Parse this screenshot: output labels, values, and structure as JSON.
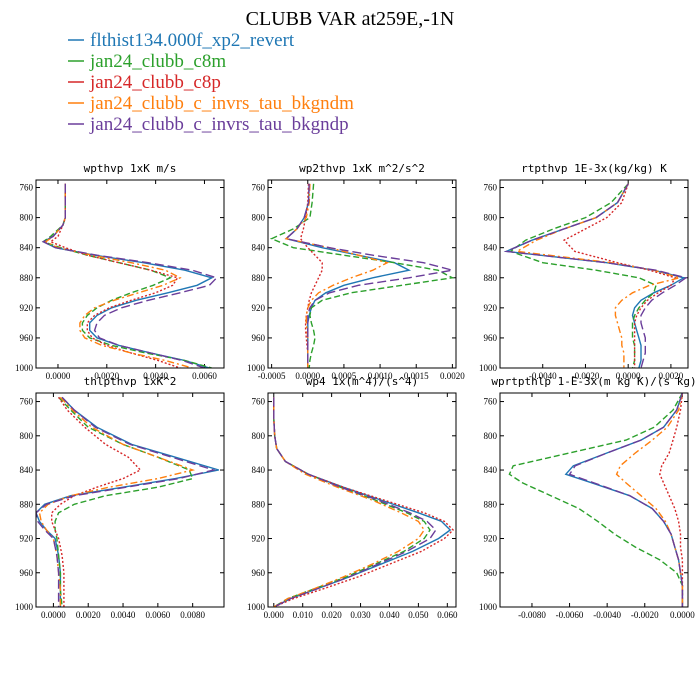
{
  "title": "CLUBB VAR at259E,-1N",
  "legend": [
    {
      "name": "flthist134.000f_xp2_revert",
      "color": "#1f77b4",
      "dash": ""
    },
    {
      "name": "jan24_clubb_c8m",
      "color": "#2ca02c",
      "dash": "6,3"
    },
    {
      "name": "jan24_clubb_c8p",
      "color": "#d62728",
      "dash": "2,2"
    },
    {
      "name": "jan24_clubb_c_invrs_tau_bkgndm",
      "color": "#ff7f0e",
      "dash": "7,3,2,3"
    },
    {
      "name": "jan24_clubb_c_invrs_tau_bkgndp",
      "color": "#6a3d9a",
      "dash": "9,4"
    }
  ],
  "chart_data": [
    {
      "type": "line",
      "title": "wpthvp  1xK m/s",
      "xticks": [
        "0.0000",
        "0.0020",
        "0.0040",
        "0.0060"
      ],
      "xtick_values": [
        0,
        0.002,
        0.004,
        0.006
      ],
      "xlim": [
        -0.0009,
        0.0068
      ],
      "yticks": [
        760,
        800,
        840,
        880,
        920,
        960,
        1000
      ],
      "ylim": [
        1000,
        750
      ],
      "y": [
        755,
        780,
        800,
        810,
        825,
        832,
        840,
        850,
        860,
        870,
        880,
        890,
        900,
        910,
        920,
        930,
        940,
        950,
        960,
        970,
        980,
        990,
        1000
      ],
      "series": [
        {
          "values": [
            0.0003,
            0.0003,
            0.0003,
            0.0002,
            -0.0002,
            -0.0006,
            -0.0001,
            0.0015,
            0.0035,
            0.0052,
            0.0063,
            0.0057,
            0.0045,
            0.0032,
            0.0022,
            0.0016,
            0.0013,
            0.0013,
            0.0016,
            0.0025,
            0.0038,
            0.0052,
            0.0062
          ]
        },
        {
          "values": [
            0.0003,
            0.0003,
            0.0003,
            0.0002,
            -0.0003,
            -0.0006,
            0.0001,
            0.0012,
            0.0025,
            0.0038,
            0.0046,
            0.0039,
            0.003,
            0.0022,
            0.0016,
            0.0012,
            0.001,
            0.001,
            0.0013,
            0.0022,
            0.0036,
            0.0052,
            0.0063
          ]
        },
        {
          "values": [
            0.0003,
            0.0003,
            0.0003,
            0.0002,
            0.0,
            -0.0003,
            0.0003,
            0.0012,
            0.0025,
            0.0038,
            0.0049,
            0.0047,
            0.004,
            0.003,
            0.0021,
            0.0015,
            0.0012,
            0.0012,
            0.0014,
            0.002,
            0.003,
            0.0041,
            0.005
          ]
        },
        {
          "values": [
            0.0003,
            0.0003,
            0.0003,
            0.0002,
            -0.0002,
            -0.0005,
            0.0,
            0.0014,
            0.003,
            0.0044,
            0.005,
            0.0043,
            0.0033,
            0.0023,
            0.0015,
            0.0011,
            0.0009,
            0.0009,
            0.0011,
            0.0018,
            0.003,
            0.0044,
            0.0055
          ]
        },
        {
          "values": [
            0.0003,
            0.0003,
            0.0003,
            0.0002,
            -0.0002,
            -0.0006,
            -0.0001,
            0.0016,
            0.0037,
            0.0055,
            0.0065,
            0.0062,
            0.005,
            0.0037,
            0.0026,
            0.0019,
            0.0016,
            0.0015,
            0.0017,
            0.0025,
            0.0038,
            0.0051,
            0.006
          ]
        }
      ]
    },
    {
      "type": "line",
      "title": "wp2thvp  1xK m^2/s^2",
      "xticks": [
        "-0.0005",
        "0.0000",
        "0.0005",
        "0.0010",
        "0.0015",
        "0.0020"
      ],
      "xtick_values": [
        -0.0005,
        0,
        0.0005,
        0.001,
        0.0015,
        0.002
      ],
      "xlim": [
        -0.00055,
        0.00205
      ],
      "yticks": [
        760,
        800,
        840,
        880,
        920,
        960,
        1000
      ],
      "ylim": [
        1000,
        750
      ],
      "y": [
        755,
        780,
        800,
        815,
        828,
        840,
        850,
        860,
        870,
        880,
        890,
        900,
        910,
        920,
        930,
        940,
        950,
        960,
        970,
        980,
        990,
        1000
      ],
      "series": [
        {
          "values": [
            2e-05,
            1e-05,
            -5e-05,
            -0.00015,
            -0.0003,
            0.0002,
            0.0007,
            0.0012,
            0.0014,
            0.0009,
            0.0005,
            0.00025,
            0.0001,
            5e-05,
            2e-05,
            0.0,
            0.0,
            0.0,
            0.0,
            0.0,
            0.0,
            0.0
          ]
        },
        {
          "values": [
            8e-05,
            6e-05,
            3e-05,
            -0.0002,
            -0.0005,
            -0.0002,
            0.0005,
            0.0012,
            0.0018,
            0.002,
            0.0013,
            0.0006,
            0.0002,
            5e-05,
            3e-05,
            5e-05,
            8e-05,
            0.0001,
            8e-05,
            5e-05,
            3e-05,
            2e-05
          ]
        },
        {
          "values": [
            1e-05,
            0.0,
            -3e-05,
            -6e-05,
            -0.0001,
            0.0,
            0.0001,
            0.0002,
            0.0002,
            0.00015,
            0.0001,
            5e-05,
            2e-05,
            0.0,
            -2e-05,
            -3e-05,
            -3e-05,
            -2e-05,
            -1e-05,
            0.0,
            0.0,
            0.0
          ]
        },
        {
          "values": [
            3e-05,
            2e-05,
            -2e-05,
            -0.00015,
            -0.0003,
            0.0003,
            0.0007,
            0.0011,
            0.0009,
            0.0006,
            0.00035,
            0.00015,
            5e-05,
            0.0,
            -2e-05,
            -2e-05,
            -1e-05,
            0.0,
            0.0,
            0.0,
            0.0,
            0.0
          ]
        },
        {
          "values": [
            2e-05,
            1e-05,
            -5e-05,
            -0.00015,
            -0.0003,
            0.0003,
            0.0009,
            0.0016,
            0.002,
            0.0014,
            0.0007,
            0.0003,
            0.0001,
            3e-05,
            0.0,
            0.0,
            0.0,
            0.0,
            0.0,
            0.0,
            0.0,
            0.0
          ]
        }
      ]
    },
    {
      "type": "line",
      "title": "rtpthvp  1E-3x(kg/kg) K",
      "xticks": [
        "-0.0040",
        "-0.0020",
        "0.0000",
        "0.0020"
      ],
      "xtick_values": [
        -0.004,
        -0.002,
        0,
        0.002
      ],
      "xlim": [
        -0.006,
        0.0028
      ],
      "yticks": [
        760,
        800,
        840,
        880,
        920,
        960,
        1000
      ],
      "ylim": [
        1000,
        750
      ],
      "y": [
        755,
        780,
        800,
        815,
        830,
        845,
        860,
        870,
        880,
        890,
        900,
        910,
        920,
        930,
        940,
        950,
        960,
        970,
        980,
        990,
        1000
      ],
      "series": [
        {
          "values": [
            0.0,
            -0.0005,
            -0.0015,
            -0.003,
            -0.0045,
            -0.0057,
            -0.001,
            0.0012,
            0.0026,
            0.002,
            0.0012,
            0.0006,
            0.0003,
            0.0002,
            0.0003,
            0.0004,
            0.0005,
            0.0006,
            0.0006,
            0.0006,
            0.0005
          ]
        },
        {
          "values": [
            0.0,
            -0.0008,
            -0.002,
            -0.0035,
            -0.0048,
            -0.0055,
            -0.004,
            -0.0015,
            0.0005,
            0.0013,
            0.0012,
            0.0008,
            0.0005,
            0.0003,
            0.0002,
            0.0002,
            0.0002,
            0.0003,
            0.0003,
            0.0003,
            0.0002
          ]
        },
        {
          "values": [
            0.0,
            -0.0003,
            -0.001,
            -0.002,
            -0.003,
            -0.0025,
            -0.0005,
            0.001,
            0.0022,
            0.002,
            0.0014,
            0.0009,
            0.0006,
            0.0004,
            0.0003,
            0.0003,
            0.0003,
            0.0003,
            0.0003,
            0.0003,
            0.0003
          ]
        },
        {
          "values": [
            0.0,
            -0.0005,
            -0.0015,
            -0.003,
            -0.0043,
            -0.0052,
            -0.0008,
            0.0012,
            0.0024,
            0.001,
            0.0002,
            -0.0003,
            -0.0006,
            -0.0006,
            -0.0005,
            -0.0004,
            -0.0003,
            -0.0003,
            -0.0002,
            -0.0002,
            -0.0002
          ]
        },
        {
          "values": [
            0.0,
            -0.0005,
            -0.0015,
            -0.003,
            -0.0045,
            -0.0057,
            -0.001,
            0.0013,
            0.0027,
            0.0022,
            0.0016,
            0.0011,
            0.0008,
            0.0006,
            0.0006,
            0.0007,
            0.0008,
            0.0008,
            0.0008,
            0.0007,
            0.0006
          ]
        }
      ]
    },
    {
      "type": "line",
      "title": "thlpthvp  1xK^2",
      "xticks": [
        "0.0000",
        "0.0020",
        "0.0040",
        "0.0060",
        "0.0080"
      ],
      "xtick_values": [
        0,
        0.002,
        0.004,
        0.006,
        0.008
      ],
      "xlim": [
        -0.001,
        0.0098
      ],
      "yticks": [
        760,
        800,
        840,
        880,
        920,
        960,
        1000
      ],
      "ylim": [
        1000,
        750
      ],
      "y": [
        755,
        770,
        790,
        810,
        825,
        840,
        850,
        860,
        870,
        880,
        890,
        900,
        910,
        920,
        940,
        960,
        980,
        1000
      ],
      "series": [
        {
          "values": [
            0.0005,
            0.0012,
            0.0025,
            0.0045,
            0.007,
            0.0095,
            0.007,
            0.004,
            0.001,
            -0.0005,
            -0.001,
            -0.0008,
            -0.0004,
            0.0001,
            0.0003,
            0.0004,
            0.0004,
            0.0004
          ]
        },
        {
          "values": [
            0.0003,
            0.001,
            0.002,
            0.004,
            0.006,
            0.0078,
            0.008,
            0.006,
            0.003,
            0.0012,
            0.0003,
            0.0001,
            0.0001,
            0.0002,
            0.0003,
            0.0004,
            0.0004,
            0.0005
          ]
        },
        {
          "values": [
            0.0003,
            0.0008,
            0.0018,
            0.003,
            0.0043,
            0.005,
            0.004,
            0.0025,
            0.0012,
            0.0004,
            -0.0001,
            -0.0001,
            0.0001,
            0.0003,
            0.0005,
            0.0006,
            0.0006,
            0.0006
          ]
        },
        {
          "values": [
            0.0004,
            0.0011,
            0.0022,
            0.004,
            0.006,
            0.008,
            0.006,
            0.0032,
            0.001,
            -0.0003,
            -0.0008,
            -0.0007,
            -0.0004,
            0.0,
            0.0002,
            0.0003,
            0.0004,
            0.0004
          ]
        },
        {
          "values": [
            0.0005,
            0.0012,
            0.0024,
            0.0044,
            0.0068,
            0.0092,
            0.0072,
            0.0042,
            0.0012,
            -0.0004,
            -0.001,
            -0.0009,
            -0.0005,
            0.0,
            0.0002,
            0.0003,
            0.0003,
            0.0003
          ]
        }
      ]
    },
    {
      "type": "line",
      "title": "wp4  1x(m^4)/(s^4)",
      "xticks": [
        "0.000",
        "0.010",
        "0.020",
        "0.030",
        "0.040",
        "0.050",
        "0.060"
      ],
      "xtick_values": [
        0,
        0.01,
        0.02,
        0.03,
        0.04,
        0.05,
        0.06
      ],
      "xlim": [
        -0.002,
        0.063
      ],
      "yticks": [
        760,
        800,
        840,
        880,
        920,
        960,
        1000
      ],
      "ylim": [
        1000,
        750
      ],
      "y": [
        755,
        780,
        800,
        815,
        830,
        845,
        860,
        875,
        890,
        900,
        910,
        920,
        935,
        950,
        965,
        980,
        990,
        1000
      ],
      "series": [
        {
          "values": [
            0.0,
            0.0,
            0.0003,
            0.001,
            0.004,
            0.012,
            0.024,
            0.037,
            0.05,
            0.058,
            0.061,
            0.057,
            0.048,
            0.037,
            0.026,
            0.014,
            0.006,
            0.0
          ]
        },
        {
          "values": [
            0.0,
            0.0,
            0.0003,
            0.001,
            0.004,
            0.012,
            0.023,
            0.035,
            0.046,
            0.052,
            0.054,
            0.052,
            0.045,
            0.035,
            0.025,
            0.013,
            0.005,
            0.0
          ]
        },
        {
          "values": [
            0.0,
            0.0,
            0.0003,
            0.001,
            0.004,
            0.012,
            0.024,
            0.038,
            0.052,
            0.059,
            0.062,
            0.059,
            0.051,
            0.04,
            0.029,
            0.016,
            0.007,
            0.0
          ]
        },
        {
          "values": [
            0.0,
            0.0,
            0.0003,
            0.001,
            0.004,
            0.011,
            0.022,
            0.034,
            0.044,
            0.05,
            0.052,
            0.05,
            0.043,
            0.034,
            0.024,
            0.013,
            0.005,
            0.0
          ]
        },
        {
          "values": [
            0.0,
            0.0,
            0.0003,
            0.001,
            0.004,
            0.012,
            0.023,
            0.036,
            0.047,
            0.053,
            0.056,
            0.054,
            0.046,
            0.036,
            0.026,
            0.014,
            0.006,
            0.0
          ]
        }
      ]
    },
    {
      "type": "line",
      "title": "wprtpthlp  1-E-3x(m kg K)/(s kg)",
      "xticks": [
        "-0.0080",
        "-0.0060",
        "-0.0040",
        "-0.0020",
        "0.0000"
      ],
      "xtick_values": [
        -0.008,
        -0.006,
        -0.004,
        -0.002,
        0
      ],
      "xlim": [
        -0.0097,
        0.0003
      ],
      "yticks": [
        760,
        800,
        840,
        880,
        920,
        960,
        1000
      ],
      "ylim": [
        1000,
        750
      ],
      "y": [
        750,
        770,
        790,
        805,
        820,
        835,
        845,
        855,
        870,
        885,
        900,
        915,
        930,
        945,
        960,
        975,
        990,
        1000
      ],
      "series": [
        {
          "values": [
            0.0,
            -0.0003,
            -0.001,
            -0.0022,
            -0.004,
            -0.0058,
            -0.0062,
            -0.0048,
            -0.0028,
            -0.0016,
            -0.001,
            -0.0006,
            -0.0004,
            -0.0002,
            -0.0001,
            0.0,
            0.0,
            0.0
          ]
        },
        {
          "values": [
            0.0,
            -0.0005,
            -0.0015,
            -0.003,
            -0.006,
            -0.009,
            -0.0092,
            -0.0085,
            -0.007,
            -0.0055,
            -0.0045,
            -0.0036,
            -0.0025,
            -0.0012,
            -0.0003,
            0.0,
            0.0,
            0.0
          ]
        },
        {
          "values": [
            0.0,
            -0.0001,
            -0.0003,
            -0.0005,
            -0.0007,
            -0.0011,
            -0.0012,
            -0.001,
            -0.0007,
            -0.0004,
            -0.0002,
            -0.0001,
            -0.0001,
            0.0,
            0.0,
            0.0,
            0.0,
            0.0
          ]
        },
        {
          "values": [
            0.0,
            -0.0002,
            -0.0008,
            -0.0016,
            -0.0025,
            -0.0033,
            -0.0035,
            -0.003,
            -0.0022,
            -0.0014,
            -0.0009,
            -0.0006,
            -0.0004,
            -0.0002,
            -0.0001,
            0.0,
            0.0,
            0.0
          ]
        },
        {
          "values": [
            0.0,
            -0.0003,
            -0.001,
            -0.0022,
            -0.004,
            -0.0057,
            -0.006,
            -0.0047,
            -0.0028,
            -0.0016,
            -0.001,
            -0.0006,
            -0.0004,
            -0.0002,
            -0.0001,
            0.0,
            0.0,
            0.0
          ]
        }
      ]
    }
  ]
}
